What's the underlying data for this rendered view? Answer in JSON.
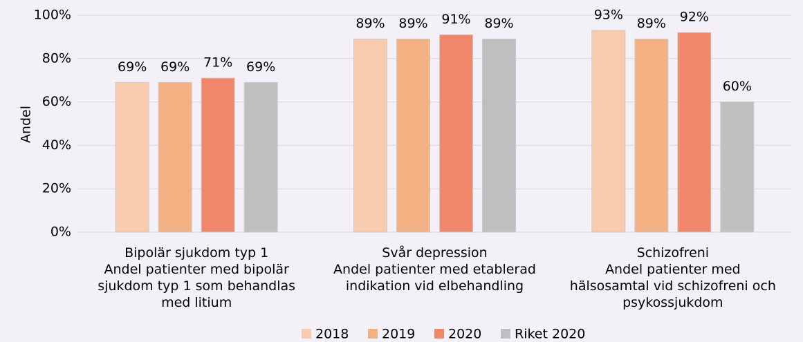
{
  "chart_data": {
    "type": "bar",
    "y_label": "Andel",
    "categories": [
      "Bipolär sjukdom typ 1\nAndel patienter med bipolär\nsjukdom typ 1 som behandlas\nmed litium",
      "Svår depression\nAndel patienter med etablerad\nindikation vid elbehandling",
      "Schizofreni\nAndel patienter med\nhälsosamtal vid schizofreni och\npsykossjukdom"
    ],
    "series": [
      {
        "name": "2018",
        "color": "#f8caae",
        "values": [
          69,
          89,
          93
        ],
        "value_labels": [
          "69%",
          "89%",
          "93%"
        ]
      },
      {
        "name": "2019",
        "color": "#f4b183",
        "values": [
          69,
          89,
          89
        ],
        "value_labels": [
          "69%",
          "89%",
          "89%"
        ]
      },
      {
        "name": "2020",
        "color": "#f0866a",
        "values": [
          71,
          91,
          92
        ],
        "value_labels": [
          "71%",
          "91%",
          "92%"
        ]
      },
      {
        "name": "Riket 2020",
        "color": "#bfbfbf",
        "values": [
          69,
          89,
          60
        ],
        "value_labels": [
          "69%",
          "89%",
          "60%"
        ]
      }
    ],
    "ylim": [
      0,
      100
    ],
    "yticks": [
      {
        "value": 0,
        "label": "0%"
      },
      {
        "value": 20,
        "label": "20%"
      },
      {
        "value": 40,
        "label": "40%"
      },
      {
        "value": 60,
        "label": "60%"
      },
      {
        "value": 80,
        "label": "80%"
      },
      {
        "value": 100,
        "label": "100%"
      }
    ],
    "grid": true,
    "legend": "bottom"
  }
}
